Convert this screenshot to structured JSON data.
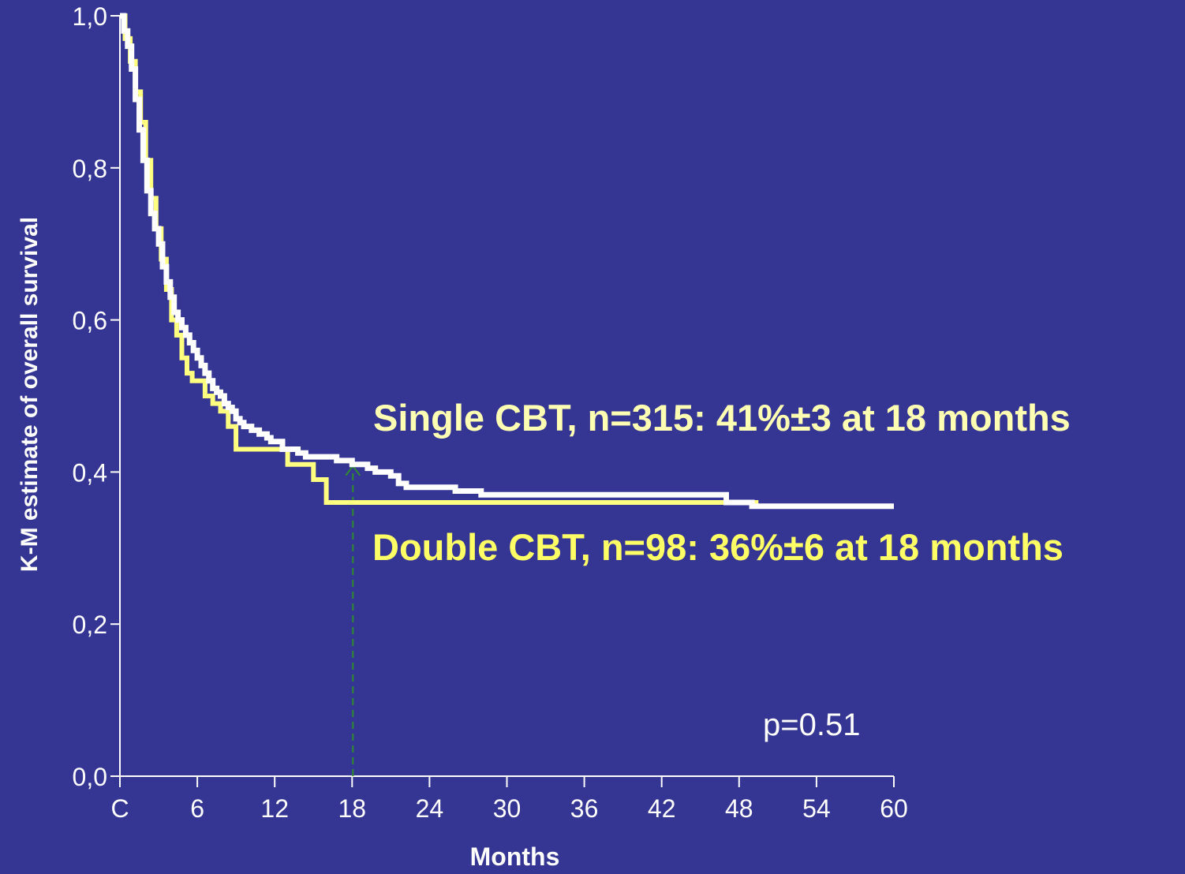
{
  "page": {
    "background": "#353594"
  },
  "chart_data": {
    "type": "line",
    "title": "",
    "xlabel": "Months",
    "ylabel": "K-M estimate of overall survival",
    "xlim": [
      0,
      60
    ],
    "ylim": [
      0,
      1
    ],
    "x_ticks": [
      0,
      6,
      12,
      18,
      24,
      30,
      36,
      42,
      48,
      54,
      60
    ],
    "x_tick_labels": [
      "C",
      "6",
      "12",
      "18",
      "24",
      "30",
      "36",
      "42",
      "48",
      "54",
      "60"
    ],
    "y_ticks": [
      0,
      0.2,
      0.4,
      0.6,
      0.8,
      1.0
    ],
    "y_tick_labels": [
      "0,0",
      "0,2",
      "0,4",
      "0,6",
      "0,8",
      "1,0"
    ],
    "grid": false,
    "axis_color": "#ffffff",
    "series": [
      {
        "color": "#ffffff",
        "label_color": "#ffffb3",
        "label": "Single CBT, n=315: 41%±3 at 18 months",
        "x": [
          0,
          0.3,
          0.6,
          0.9,
          1.2,
          1.5,
          1.8,
          2.1,
          2.4,
          2.7,
          3.0,
          3.3,
          3.6,
          3.9,
          4.2,
          4.5,
          4.8,
          5.1,
          5.4,
          5.7,
          6.0,
          6.3,
          6.6,
          6.9,
          7.2,
          7.5,
          7.8,
          8.1,
          8.4,
          8.7,
          9.0,
          9.3,
          9.6,
          9.9,
          10.2,
          10.5,
          10.8,
          11.1,
          11.4,
          11.7,
          12.0,
          12.6,
          13.2,
          13.8,
          14.4,
          15.0,
          15.6,
          16.2,
          16.8,
          17.4,
          18.0,
          18.6,
          19.2,
          19.8,
          20.4,
          21.0,
          21.6,
          22.2,
          24.0,
          26.0,
          28.0,
          30.0,
          34.0,
          40.0,
          46.0,
          47.0,
          49.0,
          52.0,
          56.0,
          60.0
        ],
        "y": [
          1.0,
          0.98,
          0.96,
          0.93,
          0.89,
          0.85,
          0.81,
          0.77,
          0.74,
          0.72,
          0.7,
          0.67,
          0.65,
          0.63,
          0.61,
          0.6,
          0.59,
          0.58,
          0.57,
          0.56,
          0.55,
          0.54,
          0.53,
          0.52,
          0.51,
          0.505,
          0.5,
          0.49,
          0.485,
          0.48,
          0.47,
          0.465,
          0.46,
          0.46,
          0.455,
          0.455,
          0.45,
          0.45,
          0.445,
          0.44,
          0.44,
          0.43,
          0.43,
          0.425,
          0.42,
          0.42,
          0.42,
          0.42,
          0.415,
          0.415,
          0.41,
          0.41,
          0.405,
          0.4,
          0.4,
          0.395,
          0.385,
          0.38,
          0.38,
          0.375,
          0.37,
          0.37,
          0.37,
          0.37,
          0.37,
          0.36,
          0.355,
          0.355,
          0.355,
          0.355
        ]
      },
      {
        "color": "#ffff80",
        "label_color": "#ffff66",
        "label": "Double CBT, n=98: 36%±6 at 18 months",
        "x": [
          0,
          0.4,
          0.8,
          1.2,
          1.6,
          2.0,
          2.4,
          2.8,
          3.2,
          3.6,
          4.0,
          4.4,
          4.8,
          5.2,
          5.6,
          6.0,
          6.6,
          7.2,
          7.8,
          8.4,
          9.0,
          10.0,
          11.0,
          12.0,
          13.0,
          14.0,
          15.0,
          16.0,
          17.0,
          18.0,
          24.0,
          30.0,
          36.0,
          42.0,
          48.0,
          49.0,
          49.5
        ],
        "y": [
          1.0,
          0.97,
          0.94,
          0.9,
          0.86,
          0.81,
          0.76,
          0.72,
          0.68,
          0.64,
          0.6,
          0.58,
          0.55,
          0.53,
          0.52,
          0.52,
          0.5,
          0.49,
          0.48,
          0.46,
          0.43,
          0.43,
          0.43,
          0.43,
          0.41,
          0.41,
          0.39,
          0.36,
          0.36,
          0.36,
          0.36,
          0.36,
          0.36,
          0.36,
          0.36,
          0.36,
          0.36
        ]
      }
    ],
    "annotations": [
      {
        "text": "Single CBT, n=315: 41%±3 at 18 months",
        "color": "#ffffb3"
      },
      {
        "text": "Double CBT, n=98: 36%±6 at 18 months",
        "color": "#ffff66"
      },
      {
        "text": "p=0.51",
        "color": "#ffffff"
      }
    ],
    "reference_line": {
      "x": 18,
      "y_from": 0,
      "y_to": 0.41,
      "color": "#2e8b2e",
      "style": "dashed",
      "arrow": "up"
    }
  }
}
